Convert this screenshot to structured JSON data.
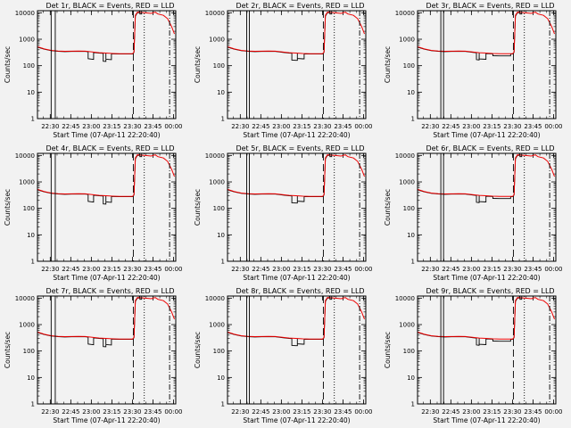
{
  "chart_data": {
    "type": "line",
    "common": {
      "xlabel": "Start Time (07-Apr-11 22:20:40)",
      "ylabel": "Counts/sec",
      "x_unit": "minutes since 22:20:40",
      "xlim": [
        0,
        101
      ],
      "x_ticks": [
        {
          "value": 9.33,
          "label": "22:30"
        },
        {
          "value": 24.33,
          "label": "22:45"
        },
        {
          "value": 39.33,
          "label": "23:00"
        },
        {
          "value": 54.33,
          "label": "23:15"
        },
        {
          "value": 69.33,
          "label": "23:30"
        },
        {
          "value": 84.33,
          "label": "23:45"
        },
        {
          "value": 99.33,
          "label": "00:00"
        }
      ],
      "yscale": "log",
      "ylim": [
        1,
        12000
      ],
      "y_ticks": [
        {
          "value": 1,
          "label": "1"
        },
        {
          "value": 10,
          "label": "10"
        },
        {
          "value": 100,
          "label": "100"
        },
        {
          "value": 1000,
          "label": "1000"
        },
        {
          "value": 10000,
          "label": "10000"
        }
      ],
      "series_colors": {
        "events": "#000000",
        "lld": "#ee0000"
      },
      "lld_series": {
        "name": "LLD",
        "points": [
          [
            0,
            520
          ],
          [
            5,
            430
          ],
          [
            10,
            380
          ],
          [
            15,
            360
          ],
          [
            20,
            350
          ],
          [
            25,
            355
          ],
          [
            30,
            360
          ],
          [
            35,
            355
          ],
          [
            40,
            330
          ],
          [
            45,
            310
          ],
          [
            50,
            300
          ],
          [
            55,
            290
          ],
          [
            60,
            285
          ],
          [
            65,
            285
          ],
          [
            69.5,
            285
          ],
          [
            70.5,
            330
          ],
          [
            71.5,
            8000
          ],
          [
            73,
            10500
          ],
          [
            78,
            10000
          ],
          [
            83,
            9500
          ],
          [
            86,
            10500
          ],
          [
            88,
            9000
          ],
          [
            92,
            8000
          ],
          [
            95,
            6000
          ],
          [
            98,
            3000
          ],
          [
            100,
            1600
          ]
        ]
      },
      "event_base": [
        [
          0,
          500
        ],
        [
          5,
          420
        ],
        [
          10,
          370
        ],
        [
          15,
          350
        ],
        [
          20,
          340
        ],
        [
          25,
          345
        ],
        [
          30,
          350
        ],
        [
          35,
          345
        ],
        [
          40,
          320
        ],
        [
          45,
          300
        ],
        [
          50,
          290
        ],
        [
          55,
          280
        ],
        [
          60,
          275
        ],
        [
          65,
          275
        ],
        [
          69.5,
          275
        ],
        [
          70.5,
          320
        ],
        [
          71.5,
          7500
        ],
        [
          73,
          10000
        ],
        [
          74.3,
          10000
        ]
      ],
      "markers": [
        {
          "x": 70,
          "style": "long-dash"
        },
        {
          "x": 74.8,
          "style": "tick-bar"
        },
        {
          "x": 78,
          "style": "dotted"
        },
        {
          "x": 96.5,
          "style": "dash-dot"
        }
      ]
    },
    "panels": [
      {
        "title": "Det 1r, BLACK = Events, RED = LLD",
        "solid_markers": [
          10,
          13
        ],
        "dips": [
          {
            "x0": 37,
            "x1": 41,
            "factor": 0.55
          },
          {
            "x0": 48,
            "x1": 50,
            "factor": 0.5
          },
          {
            "x0": 50,
            "x1": 54,
            "factor": 0.6
          }
        ]
      },
      {
        "title": "Det 2r, BLACK = Events, RED = LLD",
        "solid_markers": [
          14,
          16
        ],
        "dips": [
          {
            "x0": 47,
            "x1": 51,
            "factor": 0.55
          },
          {
            "x0": 51,
            "x1": 56,
            "factor": 0.65
          }
        ]
      },
      {
        "title": "Det 3r, BLACK = Events, RED = LLD",
        "solid_markers": [
          17,
          19
        ],
        "dips": [
          {
            "x0": 43,
            "x1": 45,
            "factor": 0.55
          },
          {
            "x0": 45,
            "x1": 50,
            "factor": 0.6
          },
          {
            "x0": 55,
            "x1": 68,
            "factor": 0.85
          }
        ]
      },
      {
        "title": "Det 4r, BLACK = Events, RED = LLD",
        "solid_markers": [
          10,
          13
        ],
        "dips": [
          {
            "x0": 37,
            "x1": 41,
            "factor": 0.55
          },
          {
            "x0": 48,
            "x1": 50,
            "factor": 0.5
          },
          {
            "x0": 50,
            "x1": 54,
            "factor": 0.6
          }
        ]
      },
      {
        "title": "Det 5r, BLACK = Events, RED = LLD",
        "solid_markers": [
          14,
          16
        ],
        "dips": [
          {
            "x0": 47,
            "x1": 51,
            "factor": 0.55
          },
          {
            "x0": 51,
            "x1": 56,
            "factor": 0.65
          }
        ]
      },
      {
        "title": "Det 6r, BLACK = Events, RED = LLD",
        "solid_markers": [
          17,
          19
        ],
        "dips": [
          {
            "x0": 43,
            "x1": 45,
            "factor": 0.55
          },
          {
            "x0": 45,
            "x1": 50,
            "factor": 0.6
          },
          {
            "x0": 55,
            "x1": 68,
            "factor": 0.85
          }
        ]
      },
      {
        "title": "Det 7r, BLACK = Events, RED = LLD",
        "solid_markers": [
          10,
          13
        ],
        "dips": [
          {
            "x0": 37,
            "x1": 41,
            "factor": 0.55
          },
          {
            "x0": 48,
            "x1": 50,
            "factor": 0.5
          },
          {
            "x0": 50,
            "x1": 54,
            "factor": 0.6
          }
        ]
      },
      {
        "title": "Det 8r, BLACK = Events, RED = LLD",
        "solid_markers": [
          14,
          16
        ],
        "dips": [
          {
            "x0": 47,
            "x1": 51,
            "factor": 0.55
          },
          {
            "x0": 51,
            "x1": 56,
            "factor": 0.65
          }
        ]
      },
      {
        "title": "Det 9r, BLACK = Events, RED = LLD",
        "solid_markers": [
          17,
          19
        ],
        "dips": [
          {
            "x0": 43,
            "x1": 45,
            "factor": 0.55
          },
          {
            "x0": 45,
            "x1": 50,
            "factor": 0.6
          },
          {
            "x0": 55,
            "x1": 68,
            "factor": 0.85
          }
        ]
      }
    ]
  }
}
